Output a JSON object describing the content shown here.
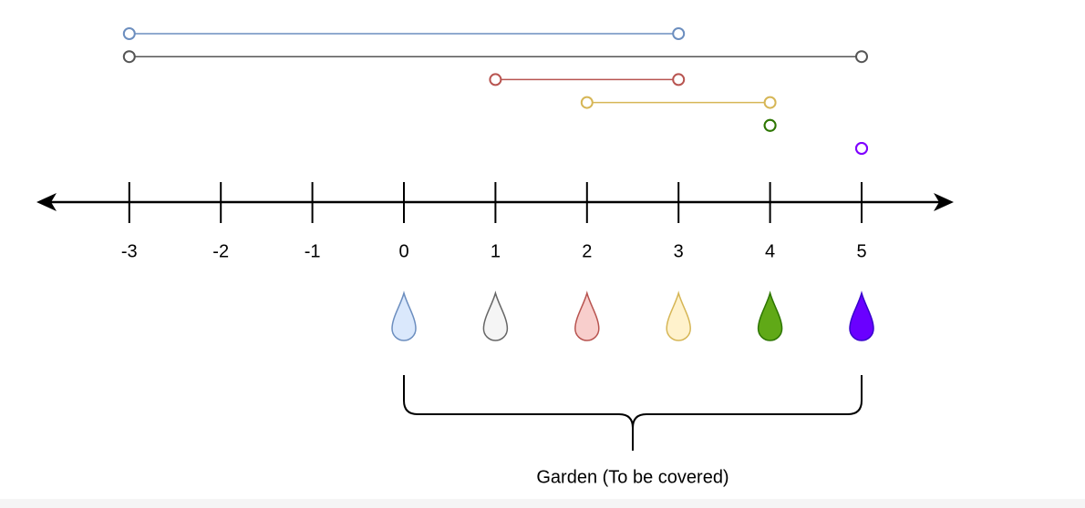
{
  "axis": {
    "ticks": [
      -3,
      -2,
      -1,
      0,
      1,
      2,
      3,
      4,
      5
    ]
  },
  "intervals": [
    {
      "start": -3,
      "end": 3,
      "color": "#6c8ebf"
    },
    {
      "start": -3,
      "end": 5,
      "color": "#555555"
    },
    {
      "start": 1,
      "end": 3,
      "color": "#b85450"
    },
    {
      "start": 2,
      "end": 4,
      "color": "#d6b656"
    },
    {
      "start": 4,
      "end": 4,
      "color": "#2d7600"
    },
    {
      "start": 5,
      "end": 5,
      "color": "#7f00ff"
    }
  ],
  "drops": [
    {
      "position": 0,
      "fill": "#dae8fc",
      "stroke": "#6c8ebf"
    },
    {
      "position": 1,
      "fill": "#f5f5f5",
      "stroke": "#666666"
    },
    {
      "position": 2,
      "fill": "#f8cecc",
      "stroke": "#b85450"
    },
    {
      "position": 3,
      "fill": "#fff2cc",
      "stroke": "#d6b656"
    },
    {
      "position": 4,
      "fill": "#60a917",
      "stroke": "#2d7600"
    },
    {
      "position": 5,
      "fill": "#6a00ff",
      "stroke": "#3700cc"
    }
  ],
  "garden": {
    "start": 0,
    "end": 5,
    "label": "Garden (To be covered)"
  }
}
